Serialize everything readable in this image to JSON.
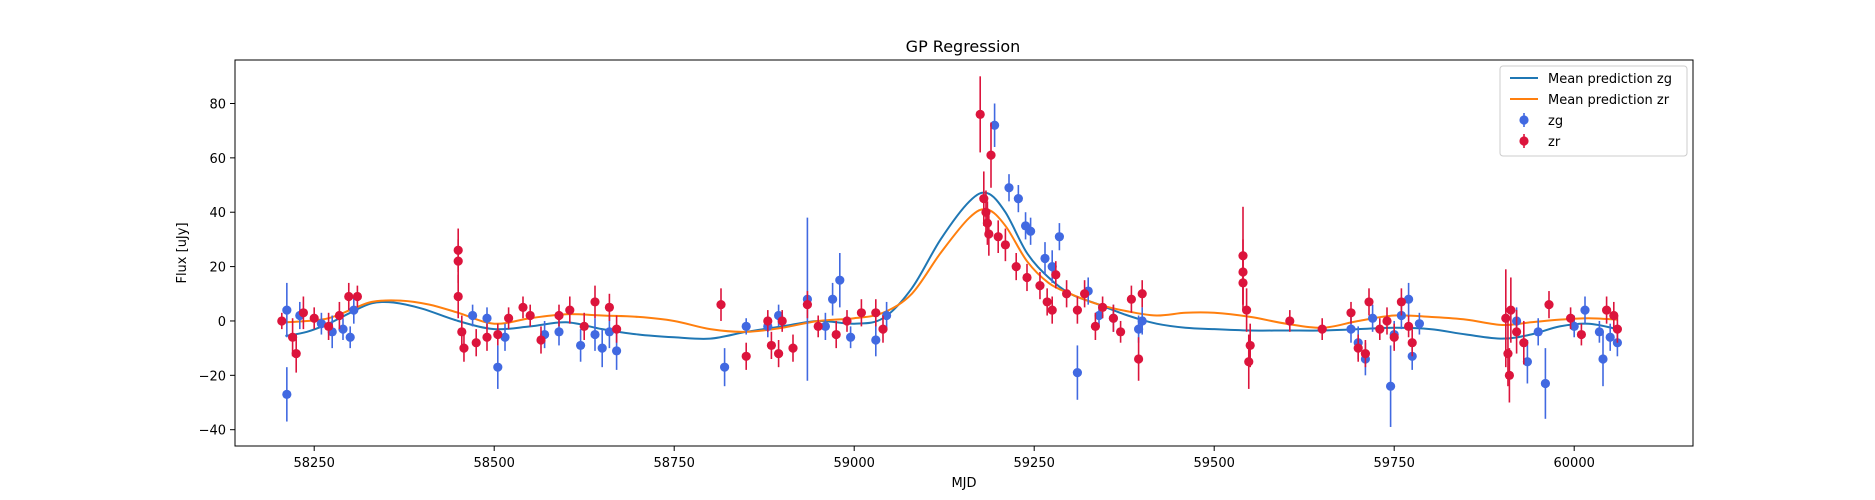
{
  "chart_data": {
    "type": "scatter",
    "title": "GP Regression",
    "xlabel": "MJD",
    "ylabel": "Flux [uJy]",
    "xlim": [
      58140,
      60165
    ],
    "ylim": [
      -46,
      96
    ],
    "xticks": [
      58250,
      58500,
      58750,
      59000,
      59250,
      59500,
      59750,
      60000
    ],
    "yticks": [
      -40,
      -20,
      0,
      20,
      40,
      60,
      80
    ],
    "grid": false,
    "legend_position": "top-right",
    "series": [
      {
        "name": "Mean prediction zg",
        "kind": "line",
        "color": "#1f77b4",
        "points": [
          [
            58210,
            -5.5
          ],
          [
            58240,
            -4
          ],
          [
            58270,
            -1
          ],
          [
            58300,
            3
          ],
          [
            58330,
            6.5
          ],
          [
            58360,
            6.8
          ],
          [
            58400,
            4.5
          ],
          [
            58450,
            0
          ],
          [
            58500,
            -3
          ],
          [
            58550,
            -2
          ],
          [
            58600,
            -0.5
          ],
          [
            58650,
            -3
          ],
          [
            58700,
            -5
          ],
          [
            58750,
            -6
          ],
          [
            58800,
            -6.5
          ],
          [
            58850,
            -4
          ],
          [
            58900,
            -2
          ],
          [
            58950,
            0
          ],
          [
            59000,
            -1
          ],
          [
            59040,
            1
          ],
          [
            59080,
            12
          ],
          [
            59120,
            30
          ],
          [
            59160,
            44
          ],
          [
            59185,
            47
          ],
          [
            59210,
            40
          ],
          [
            59240,
            25
          ],
          [
            59270,
            16
          ],
          [
            59300,
            10
          ],
          [
            59340,
            6
          ],
          [
            59380,
            2
          ],
          [
            59420,
            -1
          ],
          [
            59460,
            -2.5
          ],
          [
            59500,
            -3
          ],
          [
            59550,
            -3.5
          ],
          [
            59600,
            -3.5
          ],
          [
            59650,
            -3.5
          ],
          [
            59700,
            -3
          ],
          [
            59750,
            -2.5
          ],
          [
            59800,
            -3
          ],
          [
            59850,
            -5
          ],
          [
            59900,
            -6.5
          ],
          [
            59940,
            -5
          ],
          [
            59980,
            -2
          ],
          [
            60020,
            -1
          ],
          [
            60060,
            -3
          ]
        ]
      },
      {
        "name": "Mean prediction zr",
        "kind": "line",
        "color": "#ff7f0e",
        "points": [
          [
            58210,
            -0.5
          ],
          [
            58240,
            0
          ],
          [
            58270,
            1
          ],
          [
            58300,
            4
          ],
          [
            58330,
            7
          ],
          [
            58370,
            7.5
          ],
          [
            58410,
            6
          ],
          [
            58450,
            3
          ],
          [
            58500,
            -1
          ],
          [
            58550,
            1
          ],
          [
            58600,
            2.5
          ],
          [
            58650,
            2
          ],
          [
            58700,
            1.5
          ],
          [
            58750,
            0
          ],
          [
            58800,
            -3
          ],
          [
            58850,
            -4
          ],
          [
            58900,
            -2.5
          ],
          [
            58950,
            0
          ],
          [
            59000,
            1
          ],
          [
            59040,
            3
          ],
          [
            59080,
            10
          ],
          [
            59120,
            25
          ],
          [
            59160,
            38
          ],
          [
            59185,
            41
          ],
          [
            59210,
            35
          ],
          [
            59240,
            22
          ],
          [
            59270,
            14
          ],
          [
            59300,
            10
          ],
          [
            59340,
            6
          ],
          [
            59380,
            3.5
          ],
          [
            59420,
            2
          ],
          [
            59460,
            3
          ],
          [
            59500,
            3
          ],
          [
            59550,
            1.5
          ],
          [
            59600,
            -1
          ],
          [
            59650,
            -2.5
          ],
          [
            59700,
            0
          ],
          [
            59750,
            2
          ],
          [
            59800,
            1.5
          ],
          [
            59850,
            0.5
          ],
          [
            59900,
            -1.5
          ],
          [
            59940,
            -0.5
          ],
          [
            59980,
            0.5
          ],
          [
            60020,
            1
          ],
          [
            60060,
            0.5
          ]
        ]
      },
      {
        "name": "zg",
        "kind": "errorbar",
        "color": "#4169e1",
        "points": [
          [
            58212,
            -27,
            10
          ],
          [
            58212,
            4,
            10
          ],
          [
            58230,
            2,
            5
          ],
          [
            58260,
            -1,
            4
          ],
          [
            58275,
            -4,
            6
          ],
          [
            58290,
            -3,
            4
          ],
          [
            58300,
            -6,
            4
          ],
          [
            58305,
            4,
            5
          ],
          [
            58470,
            2,
            4
          ],
          [
            58490,
            1,
            4
          ],
          [
            58505,
            -17,
            8
          ],
          [
            58515,
            -6,
            5
          ],
          [
            58570,
            -5,
            5
          ],
          [
            58590,
            -4,
            5
          ],
          [
            58620,
            -9,
            6
          ],
          [
            58640,
            -5,
            6
          ],
          [
            58650,
            -10,
            7
          ],
          [
            58660,
            -4,
            6
          ],
          [
            58670,
            -11,
            7
          ],
          [
            58820,
            -17,
            7
          ],
          [
            58850,
            -2,
            3
          ],
          [
            58880,
            -2,
            4
          ],
          [
            58895,
            2,
            4
          ],
          [
            58935,
            8,
            30
          ],
          [
            58960,
            -2,
            5
          ],
          [
            58970,
            8,
            6
          ],
          [
            58980,
            15,
            10
          ],
          [
            58995,
            -6,
            4
          ],
          [
            59030,
            -7,
            6
          ],
          [
            59045,
            2,
            5
          ],
          [
            59195,
            72,
            8
          ],
          [
            59215,
            49,
            5
          ],
          [
            59228,
            45,
            5
          ],
          [
            59238,
            35,
            5
          ],
          [
            59245,
            33,
            5
          ],
          [
            59265,
            23,
            6
          ],
          [
            59275,
            20,
            6
          ],
          [
            59285,
            31,
            5
          ],
          [
            59310,
            -19,
            10
          ],
          [
            59325,
            11,
            5
          ],
          [
            59340,
            2,
            4
          ],
          [
            59360,
            1,
            5
          ],
          [
            59395,
            -3,
            5
          ],
          [
            59400,
            0,
            5
          ],
          [
            59690,
            -3,
            5
          ],
          [
            59700,
            -8,
            6
          ],
          [
            59710,
            -14,
            6
          ],
          [
            59720,
            1,
            5
          ],
          [
            59745,
            -24,
            15
          ],
          [
            59750,
            -5,
            5
          ],
          [
            59760,
            2,
            5
          ],
          [
            59770,
            8,
            6
          ],
          [
            59775,
            -13,
            5
          ],
          [
            59785,
            -1,
            4
          ],
          [
            59920,
            0,
            5
          ],
          [
            59935,
            -15,
            8
          ],
          [
            59950,
            -4,
            5
          ],
          [
            59960,
            -23,
            13
          ],
          [
            60000,
            -2,
            4
          ],
          [
            60015,
            4,
            5
          ],
          [
            60035,
            -4,
            4
          ],
          [
            60040,
            -14,
            10
          ],
          [
            60050,
            -6,
            5
          ],
          [
            60060,
            -8,
            5
          ]
        ]
      },
      {
        "name": "zr",
        "kind": "errorbar",
        "color": "#dc143c",
        "points": [
          [
            58205,
            0,
            3
          ],
          [
            58220,
            -6,
            7
          ],
          [
            58225,
            -12,
            7
          ],
          [
            58235,
            3,
            6
          ],
          [
            58250,
            1,
            4
          ],
          [
            58270,
            -2,
            5
          ],
          [
            58285,
            2,
            5
          ],
          [
            58298,
            9,
            5
          ],
          [
            58310,
            9,
            4
          ],
          [
            58450,
            26,
            8
          ],
          [
            58450,
            22,
            8
          ],
          [
            58450,
            9,
            8
          ],
          [
            58455,
            -4,
            6
          ],
          [
            58458,
            -10,
            5
          ],
          [
            58475,
            -8,
            5
          ],
          [
            58490,
            -6,
            5
          ],
          [
            58505,
            -5,
            4
          ],
          [
            58520,
            1,
            4
          ],
          [
            58540,
            5,
            4
          ],
          [
            58550,
            2,
            4
          ],
          [
            58565,
            -7,
            5
          ],
          [
            58590,
            2,
            4
          ],
          [
            58605,
            4,
            5
          ],
          [
            58625,
            -2,
            5
          ],
          [
            58640,
            7,
            6
          ],
          [
            58660,
            5,
            5
          ],
          [
            58670,
            -3,
            5
          ],
          [
            58815,
            6,
            6
          ],
          [
            58850,
            -13,
            5
          ],
          [
            58880,
            0,
            4
          ],
          [
            58885,
            -9,
            5
          ],
          [
            58895,
            -12,
            5
          ],
          [
            58900,
            0,
            4
          ],
          [
            58915,
            -10,
            5
          ],
          [
            58935,
            6,
            5
          ],
          [
            58950,
            -2,
            4
          ],
          [
            58975,
            -5,
            5
          ],
          [
            58990,
            0,
            4
          ],
          [
            59010,
            3,
            5
          ],
          [
            59030,
            3,
            5
          ],
          [
            59040,
            -3,
            5
          ],
          [
            59175,
            76,
            14
          ],
          [
            59180,
            45,
            10
          ],
          [
            59183,
            40,
            8
          ],
          [
            59185,
            36,
            8
          ],
          [
            59187,
            32,
            8
          ],
          [
            59190,
            61,
            12
          ],
          [
            59200,
            31,
            6
          ],
          [
            59210,
            28,
            6
          ],
          [
            59225,
            20,
            5
          ],
          [
            59240,
            16,
            5
          ],
          [
            59258,
            13,
            5
          ],
          [
            59268,
            7,
            5
          ],
          [
            59275,
            4,
            5
          ],
          [
            59280,
            17,
            5
          ],
          [
            59295,
            10,
            5
          ],
          [
            59310,
            4,
            5
          ],
          [
            59320,
            10,
            5
          ],
          [
            59335,
            -2,
            5
          ],
          [
            59345,
            5,
            4
          ],
          [
            59360,
            1,
            5
          ],
          [
            59370,
            -4,
            4
          ],
          [
            59385,
            8,
            5
          ],
          [
            59395,
            -14,
            8
          ],
          [
            59400,
            10,
            5
          ],
          [
            59540,
            24,
            18
          ],
          [
            59540,
            18,
            12
          ],
          [
            59540,
            14,
            10
          ],
          [
            59545,
            4,
            8
          ],
          [
            59550,
            -9,
            8
          ],
          [
            59548,
            -15,
            10
          ],
          [
            59605,
            0,
            4
          ],
          [
            59650,
            -3,
            4
          ],
          [
            59690,
            3,
            4
          ],
          [
            59700,
            -10,
            5
          ],
          [
            59710,
            -12,
            5
          ],
          [
            59715,
            7,
            5
          ],
          [
            59730,
            -3,
            4
          ],
          [
            59740,
            0,
            5
          ],
          [
            59750,
            -6,
            5
          ],
          [
            59760,
            7,
            5
          ],
          [
            59770,
            -2,
            4
          ],
          [
            59775,
            -8,
            5
          ],
          [
            59905,
            1,
            18
          ],
          [
            59908,
            -12,
            12
          ],
          [
            59910,
            -20,
            10
          ],
          [
            59912,
            4,
            12
          ],
          [
            59920,
            -4,
            8
          ],
          [
            59930,
            -8,
            8
          ],
          [
            59965,
            6,
            5
          ],
          [
            59995,
            1,
            4
          ],
          [
            60010,
            -5,
            4
          ],
          [
            60045,
            4,
            5
          ],
          [
            60055,
            2,
            5
          ],
          [
            60060,
            -3,
            5
          ]
        ]
      }
    ]
  }
}
